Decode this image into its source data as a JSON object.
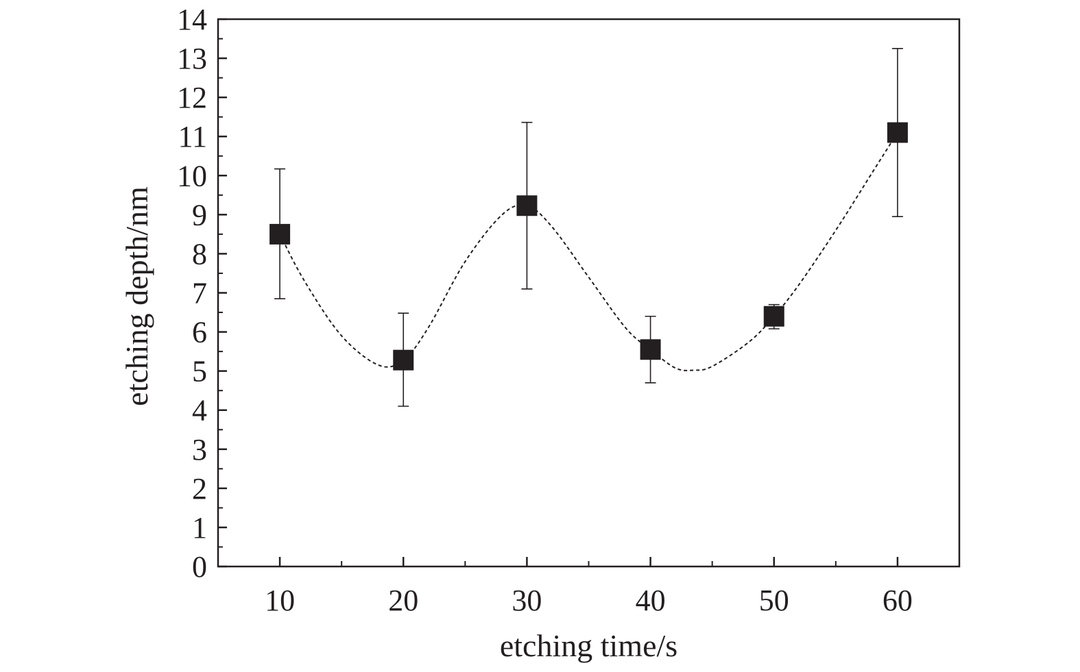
{
  "chart_data": {
    "type": "scatter",
    "title": "",
    "xlabel": "etching time/s",
    "ylabel": "etching depth/nm",
    "x_ticks": [
      "10",
      "20",
      "30",
      "40",
      "50",
      "60"
    ],
    "y_ticks": [
      "0",
      "1",
      "2",
      "3",
      "4",
      "5",
      "6",
      "7",
      "8",
      "9",
      "10",
      "11",
      "12",
      "13",
      "14"
    ],
    "xlim": [
      5,
      65
    ],
    "ylim": [
      0,
      14
    ],
    "grid": false,
    "legend": "none",
    "series": [
      {
        "x": [
          10,
          20,
          30,
          40,
          50,
          60
        ],
        "y": [
          8.5,
          5.28,
          9.23,
          5.55,
          6.4,
          11.1
        ],
        "error_low": [
          1.65,
          1.18,
          2.13,
          0.85,
          0.32,
          2.15
        ],
        "error_high": [
          1.67,
          1.2,
          2.13,
          0.85,
          0.3,
          2.15
        ],
        "marker": "square",
        "color": "#231f20"
      }
    ],
    "fit_curve": {
      "style": "dashed",
      "color": "#231f20",
      "x": [
        10,
        12,
        15,
        18,
        20,
        22,
        25,
        28,
        30,
        32,
        35,
        38,
        40,
        42,
        43.5,
        45,
        48,
        50,
        52,
        55,
        58,
        60
      ],
      "y": [
        8.5,
        7.3,
        5.9,
        5.15,
        5.28,
        6.1,
        7.8,
        9.0,
        9.23,
        8.7,
        7.4,
        6.1,
        5.55,
        5.08,
        5.02,
        5.12,
        5.75,
        6.4,
        7.2,
        8.6,
        10.1,
        11.1
      ]
    },
    "colors": {
      "axis": "#231f20",
      "marker": "#231f20",
      "background": "#ffffff"
    }
  }
}
